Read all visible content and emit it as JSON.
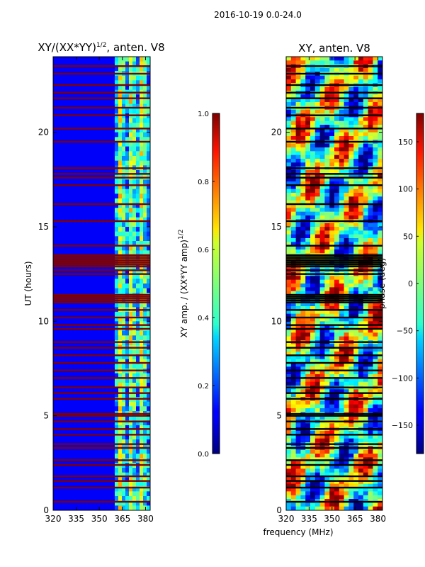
{
  "chart_data": [
    {
      "type": "heatmap",
      "suptitle": "2016-10-19 0.0-24.0",
      "title_main": "XY/(XX*YY)",
      "title_exp": "1/2",
      "title_tail": ", anten. V8",
      "ylabel": "UT (hours)",
      "xlim": [
        320,
        383
      ],
      "ylim": [
        0,
        24
      ],
      "xticks": [
        320,
        335,
        350,
        365,
        380
      ],
      "yticks": [
        0,
        5,
        10,
        15,
        20
      ],
      "rfi_band_start_mhz": 360,
      "flag_rows_hours": [
        0.45,
        1.2,
        1.55,
        1.8,
        2.4,
        2.65,
        3.3,
        3.5,
        4.0,
        4.3,
        4.7,
        5.0,
        5.1,
        5.9,
        6.2,
        6.5,
        7.0,
        7.4,
        7.8,
        8.2,
        8.6,
        8.9,
        9.6,
        9.8,
        10.2,
        10.6,
        11.0,
        11.1,
        11.2,
        11.3,
        11.4,
        12.5,
        12.7,
        12.9,
        13.0,
        13.1,
        13.2,
        13.3,
        13.4,
        13.5,
        14.0,
        15.3,
        16.2,
        17.2,
        17.6,
        17.8,
        18.1,
        19.5,
        20.2,
        20.9,
        21.3,
        21.8,
        22.1,
        22.5,
        23.1,
        23.5
      ],
      "colorbar": {
        "label": "XY amp. / (XX*YY amp)",
        "label_exp": "1/2",
        "range": [
          0.0,
          1.0
        ],
        "ticks": [
          "0.0",
          "0.2",
          "0.4",
          "0.6",
          "0.8",
          "1.0"
        ]
      }
    },
    {
      "type": "heatmap",
      "title": "XY, anten. V8",
      "xlabel": "frequency (MHz)",
      "xlim": [
        320,
        383
      ],
      "ylim": [
        0,
        24
      ],
      "xticks": [
        320,
        335,
        350,
        365,
        380
      ],
      "yticks": [
        0,
        5,
        10,
        15,
        20
      ],
      "colorbar": {
        "label": "phase (deg)",
        "range": [
          -180,
          180
        ],
        "ticks": [
          "−150",
          "−100",
          "−50",
          "0",
          "50",
          "100",
          "150"
        ],
        "tick_values": [
          -150,
          -100,
          -50,
          0,
          50,
          100,
          150
        ]
      }
    }
  ]
}
